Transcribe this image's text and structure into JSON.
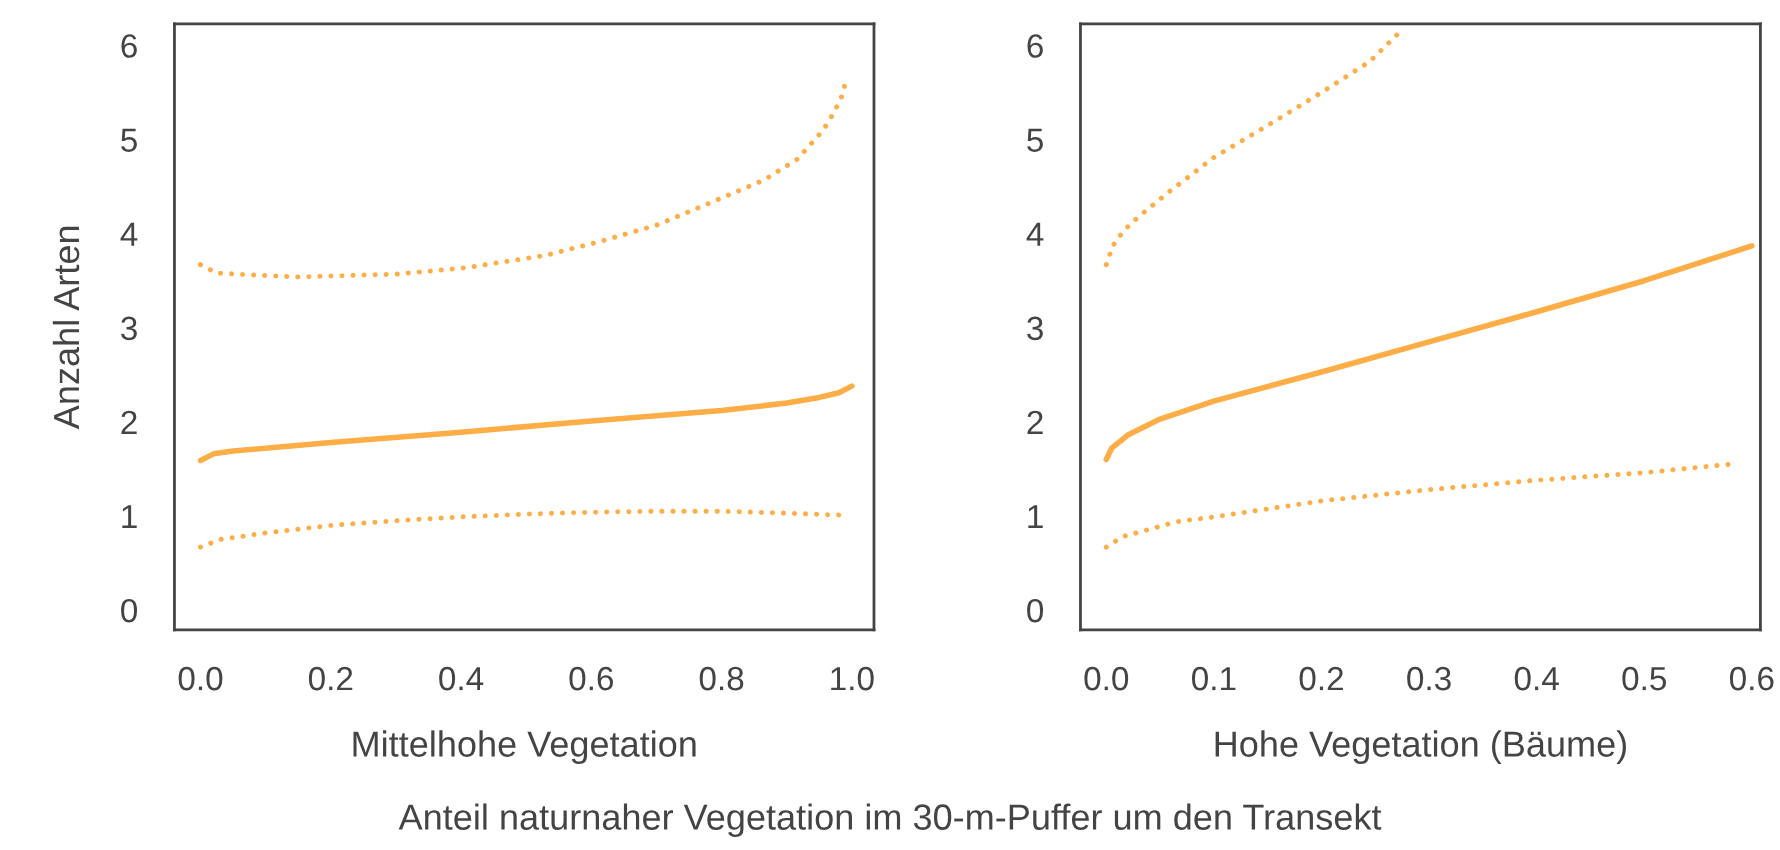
{
  "chart_data": [
    {
      "type": "line",
      "xlabel": "Mittelhohe Vegetation",
      "ylabel": "Anzahl Arten",
      "xlim": [
        -0.04,
        1.034
      ],
      "ylim": [
        -0.21,
        6.23
      ],
      "xticks": [
        {
          "value": 0,
          "label": "0.0"
        },
        {
          "value": 0.2,
          "label": "0.2"
        },
        {
          "value": 0.4,
          "label": "0.4"
        },
        {
          "value": 0.6,
          "label": "0.6"
        },
        {
          "value": 0.8,
          "label": "0.8"
        },
        {
          "value": 1,
          "label": "1.0"
        }
      ],
      "yticks": [
        0,
        1,
        2,
        3,
        4,
        5,
        6
      ],
      "grid": false,
      "legend": false,
      "marker": "none",
      "annotations": [
        "Anteil naturnaher Vegetation im 30-m-Puffer um den Transekt"
      ],
      "series": [
        {
          "color": "#ffad47",
          "line_style": "solid",
          "x": [
            0,
            0.02,
            0.05,
            0.2,
            0.4,
            0.6,
            0.8,
            0.9,
            0.95,
            0.98,
            1.0
          ],
          "values": [
            1.59,
            1.66,
            1.69,
            1.78,
            1.89,
            2.01,
            2.12,
            2.2,
            2.26,
            2.31,
            2.38
          ]
        },
        {
          "color": "#ffad47",
          "line_style": "dotted",
          "x": [
            0,
            0.025,
            0.15,
            0.3,
            0.41,
            0.53,
            0.61,
            0.7,
            0.78,
            0.865,
            0.916,
            0.955,
            0.972,
            0.984,
            0.992
          ],
          "values": [
            3.67,
            3.58,
            3.54,
            3.57,
            3.64,
            3.77,
            3.91,
            4.09,
            4.32,
            4.57,
            4.79,
            5.09,
            5.28,
            5.45,
            5.65
          ]
        },
        {
          "color": "#ffad47",
          "line_style": "dotted",
          "x": [
            0,
            0.03,
            0.1,
            0.2,
            0.3,
            0.4,
            0.5,
            0.6,
            0.7,
            0.8,
            0.9,
            0.98
          ],
          "values": [
            0.67,
            0.75,
            0.82,
            0.9,
            0.95,
            0.99,
            1.02,
            1.04,
            1.05,
            1.05,
            1.03,
            1.01
          ]
        }
      ]
    },
    {
      "type": "line",
      "xlabel": "Hohe Vegetation (Bäume)",
      "xlim": [
        -0.024,
        0.608
      ],
      "ylim": [
        -0.21,
        6.23
      ],
      "xticks": [
        {
          "value": 0,
          "label": "0.0"
        },
        {
          "value": 0.1,
          "label": "0.1"
        },
        {
          "value": 0.2,
          "label": "0.2"
        },
        {
          "value": 0.3,
          "label": "0.3"
        },
        {
          "value": 0.4,
          "label": "0.4"
        },
        {
          "value": 0.5,
          "label": "0.5"
        },
        {
          "value": 0.6,
          "label": "0.6"
        }
      ],
      "yticks": [
        0,
        1,
        2,
        3,
        4,
        5,
        6
      ],
      "grid": false,
      "legend": false,
      "marker": "none",
      "series": [
        {
          "color": "#ffad47",
          "line_style": "solid",
          "x": [
            0,
            0.005,
            0.02,
            0.05,
            0.1,
            0.2,
            0.3,
            0.4,
            0.5,
            0.6
          ],
          "values": [
            1.6,
            1.72,
            1.86,
            2.03,
            2.22,
            2.53,
            2.85,
            3.17,
            3.5,
            3.87
          ]
        },
        {
          "color": "#ffad47",
          "line_style": "dotted",
          "x": [
            0,
            0.006,
            0.016,
            0.03,
            0.06,
            0.1,
            0.15,
            0.2,
            0.245,
            0.277
          ],
          "values": [
            3.67,
            3.87,
            4.03,
            4.18,
            4.46,
            4.81,
            5.15,
            5.5,
            5.83,
            6.19
          ]
        },
        {
          "color": "#ffad47",
          "line_style": "dotted",
          "x": [
            0,
            0.015,
            0.066,
            0.1,
            0.2,
            0.3,
            0.4,
            0.5,
            0.58
          ],
          "values": [
            0.67,
            0.78,
            0.94,
            0.99,
            1.16,
            1.28,
            1.38,
            1.46,
            1.55
          ]
        }
      ]
    }
  ]
}
